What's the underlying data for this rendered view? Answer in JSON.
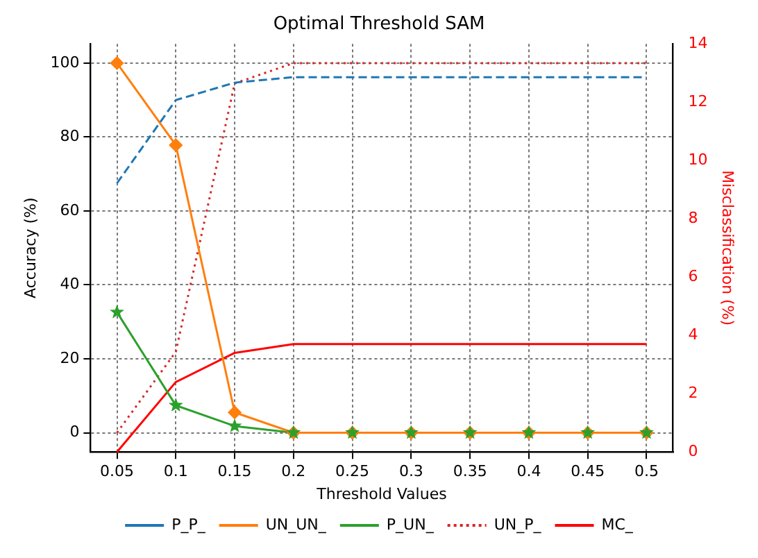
{
  "chart_data": {
    "type": "line",
    "title": "Optimal Threshold SAM",
    "xlabel": "Threshold Values",
    "ylabel": "Accuracy (%)",
    "y2label": "Misclassification (%)",
    "x": [
      0.05,
      0.1,
      0.15,
      0.2,
      0.25,
      0.3,
      0.35,
      0.4,
      0.45,
      0.5
    ],
    "xlim": [
      0.0275,
      0.5225
    ],
    "xticks": [
      0.05,
      0.1,
      0.15,
      0.2,
      0.25,
      0.3,
      0.35,
      0.4,
      0.45,
      0.5
    ],
    "ylim": [
      -5.2,
      105.2
    ],
    "yticks": [
      0,
      20,
      40,
      60,
      80,
      100
    ],
    "y2lim": [
      0,
      14
    ],
    "y2ticks": [
      0,
      2,
      4,
      6,
      8,
      10,
      12,
      14
    ],
    "grid": true,
    "legend": "bottom",
    "series": [
      {
        "name": "P_P_",
        "color": "#1f77b4",
        "line_style": "dashed",
        "marker": "none",
        "values": [
          67.5,
          90,
          94.7,
          96.2,
          96.2,
          96.2,
          96.2,
          96.2,
          96.2,
          96.2
        ]
      },
      {
        "name": "UN_UN_",
        "color": "#ff7f0e",
        "line_style": "solid",
        "marker": "diamond",
        "values": [
          100,
          77.8,
          5.5,
          0,
          0,
          0,
          0,
          0,
          0,
          0
        ]
      },
      {
        "name": "P_UN_",
        "color": "#2ca02c",
        "line_style": "solid",
        "marker": "star",
        "values": [
          32.6,
          7.4,
          1.8,
          0,
          0,
          0,
          0,
          0,
          0,
          0
        ]
      },
      {
        "name": "UN_P_",
        "color": "#d62728",
        "line_style": "dotted",
        "marker": "none",
        "values": [
          0,
          21.9,
          94.5,
          100,
          100,
          100,
          100,
          100,
          100,
          100
        ]
      },
      {
        "name": "MC_",
        "color": "#ff0000",
        "line_style": "solid",
        "marker": "none",
        "axis": "y2",
        "values": [
          0,
          2.4,
          3.4,
          3.7,
          3.7,
          3.7,
          3.7,
          3.7,
          3.7,
          3.7
        ]
      }
    ]
  }
}
